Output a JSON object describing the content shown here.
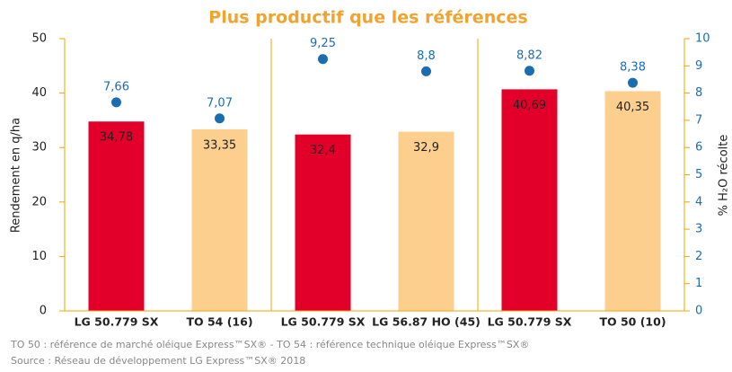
{
  "chart_data": {
    "type": "bar",
    "title": "Plus productif que les références",
    "categories": [
      "LG 50.779 SX",
      "TO 54 (16)",
      "LG 50.779 SX",
      "LG 56.87 HO (45)",
      "LG 50.779 SX",
      "TO 50 (10)"
    ],
    "series": [
      {
        "colors": [
          "#e2002a",
          "#fccf8e",
          "#e2002a",
          "#fccf8e",
          "#e2002a",
          "#fccf8e"
        ],
        "values": [
          34.78,
          33.35,
          32.4,
          32.9,
          40.69,
          40.35
        ],
        "value_labels": [
          "34,78",
          "33,35",
          "32,4",
          "32,9",
          "40,69",
          "40,35"
        ]
      },
      {
        "type": "scatter",
        "axis": "y2",
        "color": "#1c6cb0",
        "values": [
          7.66,
          7.07,
          9.25,
          8.8,
          8.82,
          8.38
        ],
        "value_labels": [
          "7,66",
          "7,07",
          "9,25",
          "8,8",
          "8,82",
          "8,38"
        ]
      }
    ],
    "ylabel": "Rendement en q/ha",
    "y2label": "% H₂O récolte",
    "ylim": [
      0,
      50
    ],
    "yticks": [
      0,
      10,
      20,
      30,
      40,
      50
    ],
    "y2lim": [
      0,
      10
    ],
    "y2ticks": [
      0,
      1,
      2,
      3,
      4,
      5,
      6,
      7,
      8,
      9,
      10
    ],
    "notes": [
      "TO 50 : référence de marché oléique Express™SX® - TO 54 : référence technique oléique Express™SX®",
      "Source : Réseau de développement LG Express™SX® 2018"
    ]
  }
}
